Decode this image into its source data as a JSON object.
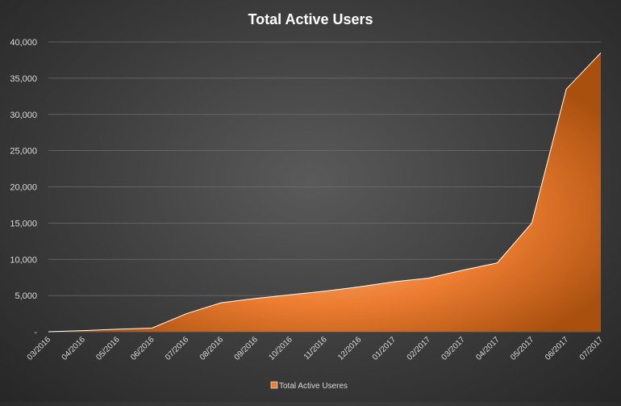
{
  "chart_data": {
    "type": "area",
    "title": "Total Active Users",
    "categories": [
      "03/2016",
      "04/2016",
      "05/2016",
      "06/2016",
      "07/2016",
      "08/2016",
      "09/2016",
      "10/2016",
      "11/2016",
      "12/2016",
      "01/2017",
      "02/2017",
      "03/2017",
      "04/2017",
      "05/2017",
      "06/2017",
      "07/2017"
    ],
    "series": [
      {
        "name": "Total Active Useres",
        "values": [
          0,
          150,
          350,
          500,
          2500,
          4000,
          4600,
          5100,
          5600,
          6200,
          6900,
          7400,
          8500,
          9500,
          15000,
          33500,
          38500
        ]
      }
    ],
    "yticks": [
      "-",
      "5,000",
      "10,000",
      "15,000",
      "20,000",
      "25,000",
      "30,000",
      "35,000",
      "40,000"
    ],
    "ylim": [
      0,
      40000
    ],
    "xlabel": "",
    "ylabel": "",
    "grid": true,
    "legend": "bottom",
    "colors": {
      "fill_light": "#f7c39e",
      "fill_mid": "#ed7d31",
      "fill_dark": "#a9500f",
      "line": "#ffffff",
      "grid": "#6e6e6e",
      "text": "#d9d9d9",
      "title": "#ffffff"
    }
  }
}
